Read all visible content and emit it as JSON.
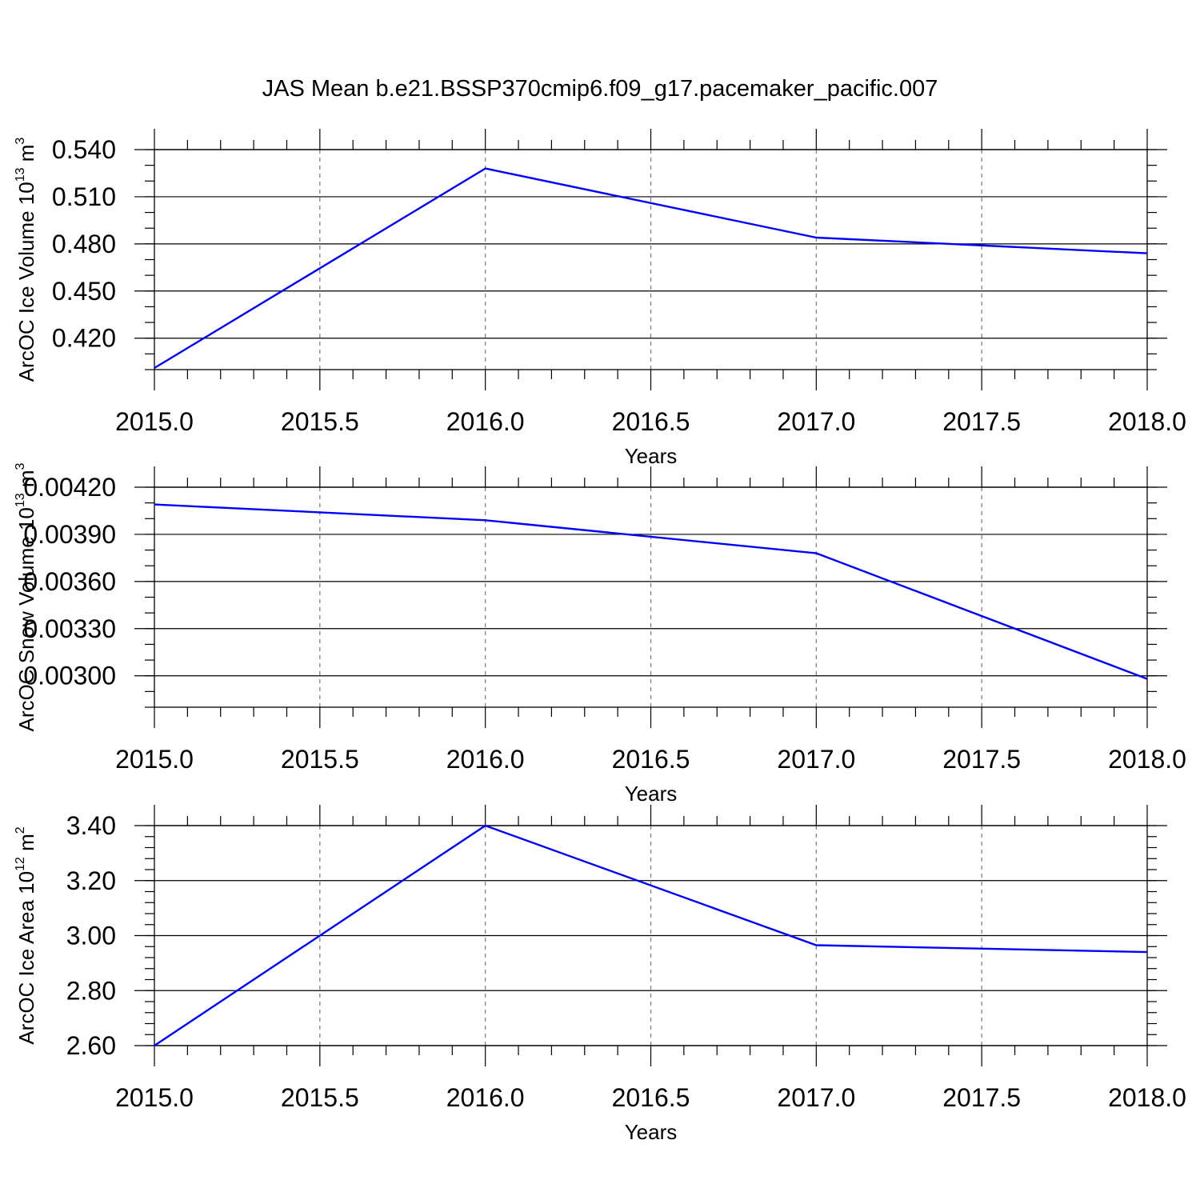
{
  "title": "JAS Mean b.e21.BSSP370cmip6.f09_g17.pacemaker_pacific.007",
  "chart_data": [
    {
      "type": "line",
      "ylabel": "ArcOC Ice Volume",
      "ylabel_base": "10",
      "ylabel_exp": "13",
      "ylabel_unit": "m",
      "ylabel_unit_exp": "3",
      "xlabel": "Years",
      "xlim": [
        2015.0,
        2018.0
      ],
      "ylim": [
        0.4,
        0.54
      ],
      "xticks": [
        2015.0,
        2015.5,
        2016.0,
        2016.5,
        2017.0,
        2017.5,
        2018.0
      ],
      "xtick_labels": [
        "2015.0",
        "2015.5",
        "2016.0",
        "2016.5",
        "2017.0",
        "2017.5",
        "2018.0"
      ],
      "yticks": [
        0.42,
        0.45,
        0.48,
        0.51,
        0.54
      ],
      "ytick_labels": [
        "0.420",
        "0.450",
        "0.480",
        "0.510",
        "0.540"
      ],
      "grid": "vertical dashed",
      "color": "#0000ff",
      "x": [
        2015,
        2016,
        2017,
        2018
      ],
      "y": [
        0.401,
        0.528,
        0.484,
        0.474
      ]
    },
    {
      "type": "line",
      "ylabel": "ArcOC Snow Volume",
      "ylabel_base": "10",
      "ylabel_exp": "13",
      "ylabel_unit": "m",
      "ylabel_unit_exp": "3",
      "xlabel": "Years",
      "xlim": [
        2015.0,
        2018.0
      ],
      "ylim": [
        0.0028,
        0.0042
      ],
      "xticks": [
        2015.0,
        2015.5,
        2016.0,
        2016.5,
        2017.0,
        2017.5,
        2018.0
      ],
      "xtick_labels": [
        "2015.0",
        "2015.5",
        "2016.0",
        "2016.5",
        "2017.0",
        "2017.5",
        "2018.0"
      ],
      "yticks": [
        0.003,
        0.0033,
        0.0036,
        0.0039,
        0.0042
      ],
      "ytick_labels": [
        "0.00300",
        "0.00330",
        "0.00360",
        "0.00390",
        "0.00420"
      ],
      "grid": "vertical dashed",
      "color": "#0000ff",
      "x": [
        2015,
        2016,
        2017,
        2018
      ],
      "y": [
        0.00409,
        0.00399,
        0.00378,
        0.00298
      ]
    },
    {
      "type": "line",
      "ylabel": "ArcOC Ice Area",
      "ylabel_base": "10",
      "ylabel_exp": "12",
      "ylabel_unit": "m",
      "ylabel_unit_exp": "2",
      "xlabel": "Years",
      "xlim": [
        2015.0,
        2018.0
      ],
      "ylim": [
        2.6,
        3.4
      ],
      "xticks": [
        2015.0,
        2015.5,
        2016.0,
        2016.5,
        2017.0,
        2017.5,
        2018.0
      ],
      "xtick_labels": [
        "2015.0",
        "2015.5",
        "2016.0",
        "2016.5",
        "2017.0",
        "2017.5",
        "2018.0"
      ],
      "yticks": [
        2.6,
        2.8,
        3.0,
        3.2,
        3.4
      ],
      "ytick_labels": [
        "2.60",
        "2.80",
        "3.00",
        "3.20",
        "3.40"
      ],
      "grid": "vertical dashed",
      "color": "#0000ff",
      "x": [
        2015,
        2016,
        2017,
        2018
      ],
      "y": [
        2.6,
        3.4,
        2.965,
        2.94
      ]
    }
  ]
}
